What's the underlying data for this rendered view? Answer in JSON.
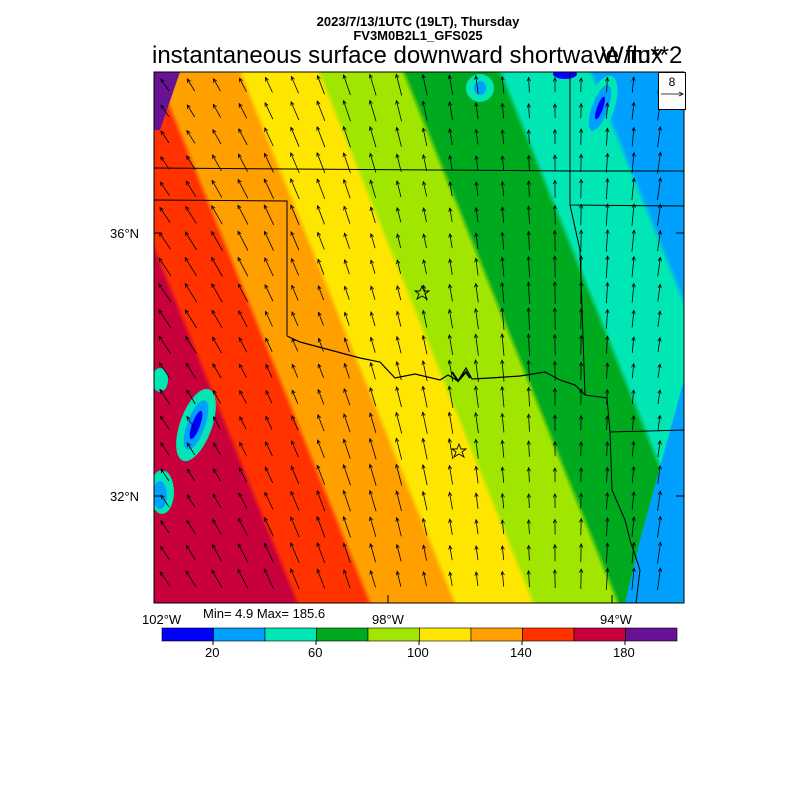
{
  "header": {
    "datetime": "2023/7/13/1UTC (19LT), Thursday",
    "model": "FV3M0B2L1_GFS025"
  },
  "title": "instantaneous surface downward shortwave flux",
  "units": "W/m**2",
  "ref_vector": {
    "magnitude": "8"
  },
  "lat_labels": [
    "36°N",
    "32°N"
  ],
  "lon_labels": [
    "102°W",
    "98°W",
    "94°W"
  ],
  "stats": {
    "text": "Min= 4.9 Max= 185.6",
    "min": 4.9,
    "max": 185.6
  },
  "colorbar": {
    "colors": [
      "#0000ff",
      "#00a0ff",
      "#00e6b4",
      "#00aa1e",
      "#a0e600",
      "#ffe600",
      "#ffa000",
      "#ff3200",
      "#c8003c",
      "#6a1296"
    ],
    "labels": [
      "20",
      "60",
      "100",
      "140",
      "180"
    ]
  },
  "markers": {
    "stars": 2
  }
}
